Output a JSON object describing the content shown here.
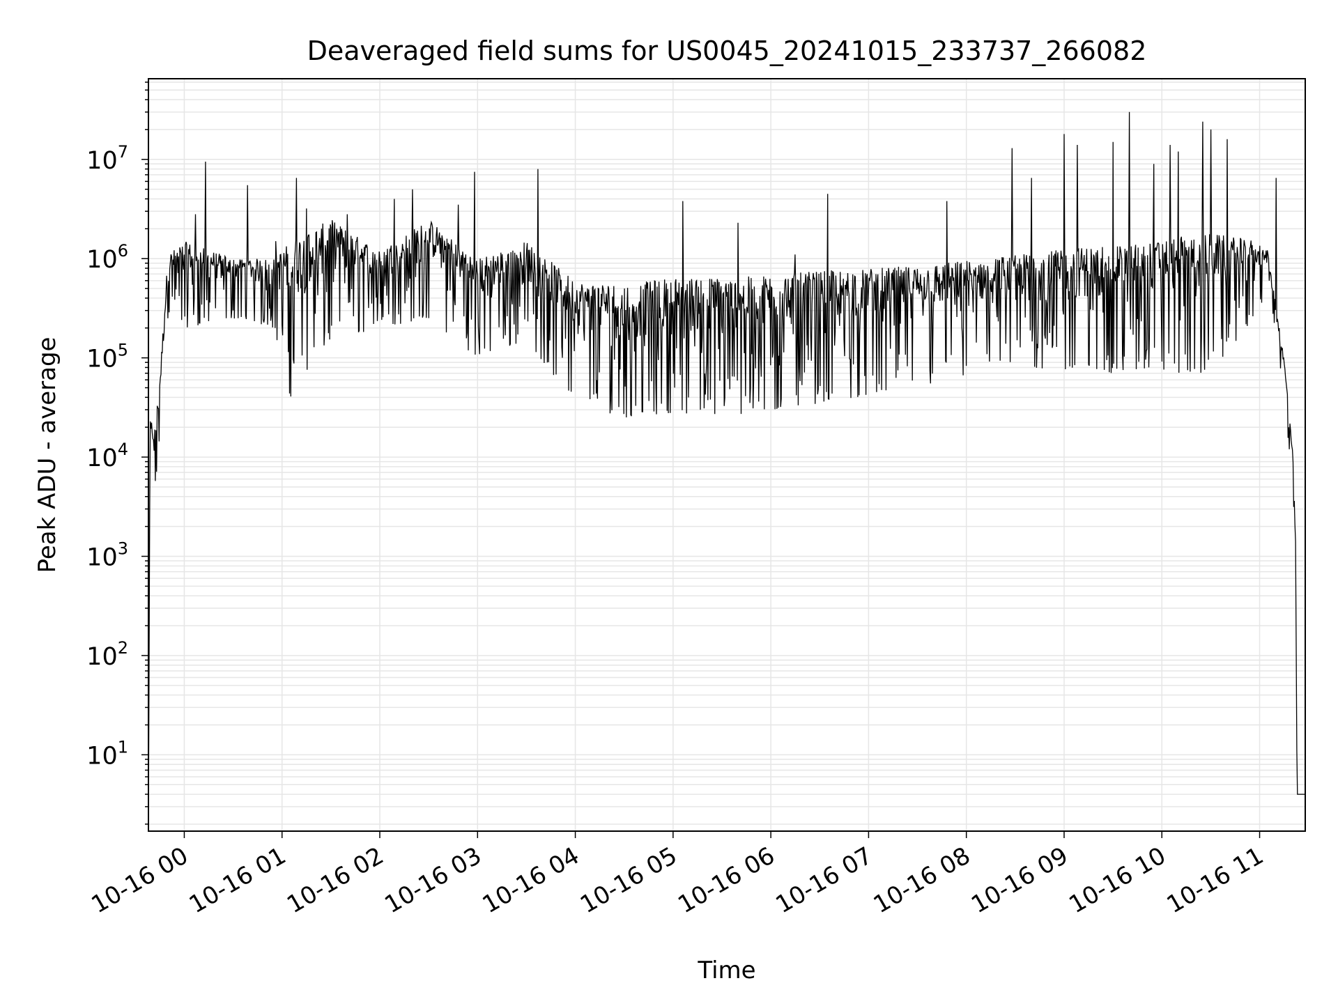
{
  "chart_data": {
    "type": "line",
    "title": "Deaveraged field sums for US0045_20241015_233737_266082",
    "xlabel": "Time",
    "ylabel": "Peak ADU - average",
    "y_scale": "log",
    "ylim": [
      1.7,
      65000000
    ],
    "xlim": [
      "2024-10-15 23:38",
      "2024-10-16 11:28"
    ],
    "x_ticks": [
      {
        "t": "2024-10-16 00:00",
        "label": "10-16 00"
      },
      {
        "t": "2024-10-16 01:00",
        "label": "10-16 01"
      },
      {
        "t": "2024-10-16 02:00",
        "label": "10-16 02"
      },
      {
        "t": "2024-10-16 03:00",
        "label": "10-16 03"
      },
      {
        "t": "2024-10-16 04:00",
        "label": "10-16 04"
      },
      {
        "t": "2024-10-16 05:00",
        "label": "10-16 05"
      },
      {
        "t": "2024-10-16 06:00",
        "label": "10-16 06"
      },
      {
        "t": "2024-10-16 07:00",
        "label": "10-16 07"
      },
      {
        "t": "2024-10-16 08:00",
        "label": "10-16 08"
      },
      {
        "t": "2024-10-16 09:00",
        "label": "10-16 09"
      },
      {
        "t": "2024-10-16 10:00",
        "label": "10-16 10"
      },
      {
        "t": "2024-10-16 11:00",
        "label": "10-16 11"
      }
    ],
    "y_ticks": [
      {
        "value": 10,
        "base": "10",
        "exp": "1"
      },
      {
        "value": 100,
        "base": "10",
        "exp": "2"
      },
      {
        "value": 1000,
        "base": "10",
        "exp": "3"
      },
      {
        "value": 10000,
        "base": "10",
        "exp": "4"
      },
      {
        "value": 100000,
        "base": "10",
        "exp": "5"
      },
      {
        "value": 1000000,
        "base": "10",
        "exp": "6"
      },
      {
        "value": 10000000,
        "base": "10",
        "exp": "7"
      }
    ],
    "grid": true,
    "line_color": "#000000",
    "grid_color": "#e6e6e6",
    "envelope": [
      {
        "t": "2024-10-15 23:38",
        "low": 1.7,
        "high": 1.7
      },
      {
        "t": "2024-10-15 23:39",
        "low": 10000,
        "high": 25000
      },
      {
        "t": "2024-10-15 23:42",
        "low": 3200,
        "high": 20000
      },
      {
        "t": "2024-10-15 23:45",
        "low": 15000,
        "high": 65000
      },
      {
        "t": "2024-10-15 23:50",
        "low": 250000,
        "high": 1100000
      },
      {
        "t": "2024-10-16 00:00",
        "low": 200000,
        "high": 1500000
      },
      {
        "t": "2024-10-16 00:30",
        "low": 250000,
        "high": 1000000
      },
      {
        "t": "2024-10-16 00:55",
        "low": 200000,
        "high": 1000000
      },
      {
        "t": "2024-10-16 01:05",
        "low": 40000,
        "high": 1500000
      },
      {
        "t": "2024-10-16 01:30",
        "low": 150000,
        "high": 2500000
      },
      {
        "t": "2024-10-16 02:00",
        "low": 200000,
        "high": 1200000
      },
      {
        "t": "2024-10-16 02:30",
        "low": 250000,
        "high": 2500000
      },
      {
        "t": "2024-10-16 03:00",
        "low": 100000,
        "high": 1000000
      },
      {
        "t": "2024-10-16 03:30",
        "low": 150000,
        "high": 1500000
      },
      {
        "t": "2024-10-16 04:00",
        "low": 35000,
        "high": 600000
      },
      {
        "t": "2024-10-16 04:30",
        "low": 25000,
        "high": 550000
      },
      {
        "t": "2024-10-16 05:00",
        "low": 28000,
        "high": 650000
      },
      {
        "t": "2024-10-16 05:40",
        "low": 25000,
        "high": 650000
      },
      {
        "t": "2024-10-16 06:30",
        "low": 35000,
        "high": 750000
      },
      {
        "t": "2024-10-16 07:30",
        "low": 50000,
        "high": 850000
      },
      {
        "t": "2024-10-16 08:30",
        "low": 80000,
        "high": 1100000
      },
      {
        "t": "2024-10-16 09:30",
        "low": 70000,
        "high": 1400000
      },
      {
        "t": "2024-10-16 10:30",
        "low": 70000,
        "high": 1800000
      },
      {
        "t": "2024-10-16 11:00",
        "low": 300000,
        "high": 1500000
      },
      {
        "t": "2024-10-16 11:05",
        "low": 600000,
        "high": 1200000
      },
      {
        "t": "2024-10-16 11:15",
        "low": 40000,
        "high": 100000
      },
      {
        "t": "2024-10-16 11:20",
        "low": 5000,
        "high": 15000
      },
      {
        "t": "2024-10-16 11:22",
        "low": 500,
        "high": 2000
      },
      {
        "t": "2024-10-16 11:23",
        "low": 4,
        "high": 4
      },
      {
        "t": "2024-10-16 11:28",
        "low": 4,
        "high": 4
      }
    ],
    "spikes": [
      {
        "t": "2024-10-16 00:07",
        "value": 2800000
      },
      {
        "t": "2024-10-16 00:13",
        "value": 9500000
      },
      {
        "t": "2024-10-16 00:39",
        "value": 5500000
      },
      {
        "t": "2024-10-16 00:56",
        "value": 1500000
      },
      {
        "t": "2024-10-16 01:09",
        "value": 6500000
      },
      {
        "t": "2024-10-16 01:15",
        "value": 3200000
      },
      {
        "t": "2024-10-16 01:40",
        "value": 2800000
      },
      {
        "t": "2024-10-16 02:09",
        "value": 4000000
      },
      {
        "t": "2024-10-16 02:20",
        "value": 5000000
      },
      {
        "t": "2024-10-16 02:48",
        "value": 3500000
      },
      {
        "t": "2024-10-16 02:58",
        "value": 7500000
      },
      {
        "t": "2024-10-16 03:37",
        "value": 8000000
      },
      {
        "t": "2024-10-16 05:06",
        "value": 3800000
      },
      {
        "t": "2024-10-16 05:40",
        "value": 2300000
      },
      {
        "t": "2024-10-16 06:15",
        "value": 1100000
      },
      {
        "t": "2024-10-16 06:35",
        "value": 4500000
      },
      {
        "t": "2024-10-16 07:48",
        "value": 3800000
      },
      {
        "t": "2024-10-16 08:28",
        "value": 13000000
      },
      {
        "t": "2024-10-16 08:40",
        "value": 6500000
      },
      {
        "t": "2024-10-16 09:00",
        "value": 18000000
      },
      {
        "t": "2024-10-16 09:08",
        "value": 14000000
      },
      {
        "t": "2024-10-16 09:30",
        "value": 15000000
      },
      {
        "t": "2024-10-16 09:40",
        "value": 30000000
      },
      {
        "t": "2024-10-16 09:55",
        "value": 9000000
      },
      {
        "t": "2024-10-16 10:05",
        "value": 14000000
      },
      {
        "t": "2024-10-16 10:10",
        "value": 12000000
      },
      {
        "t": "2024-10-16 10:25",
        "value": 24000000
      },
      {
        "t": "2024-10-16 10:30",
        "value": 20000000
      },
      {
        "t": "2024-10-16 10:40",
        "value": 16000000
      },
      {
        "t": "2024-10-16 11:10",
        "value": 6500000
      }
    ]
  }
}
